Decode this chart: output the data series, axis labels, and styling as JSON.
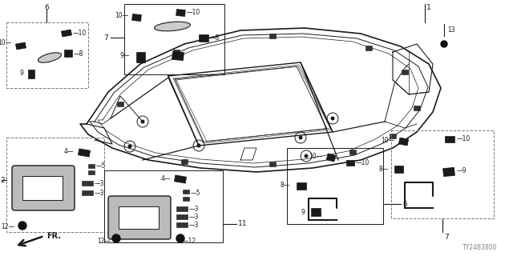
{
  "bg_color": "#ffffff",
  "line_color": "#1a1a1a",
  "title_code": "TY24B3800",
  "fig_size": [
    6.4,
    3.2
  ],
  "dpi": 100,
  "label_fontsize": 6.5,
  "small_fontsize": 5.5
}
